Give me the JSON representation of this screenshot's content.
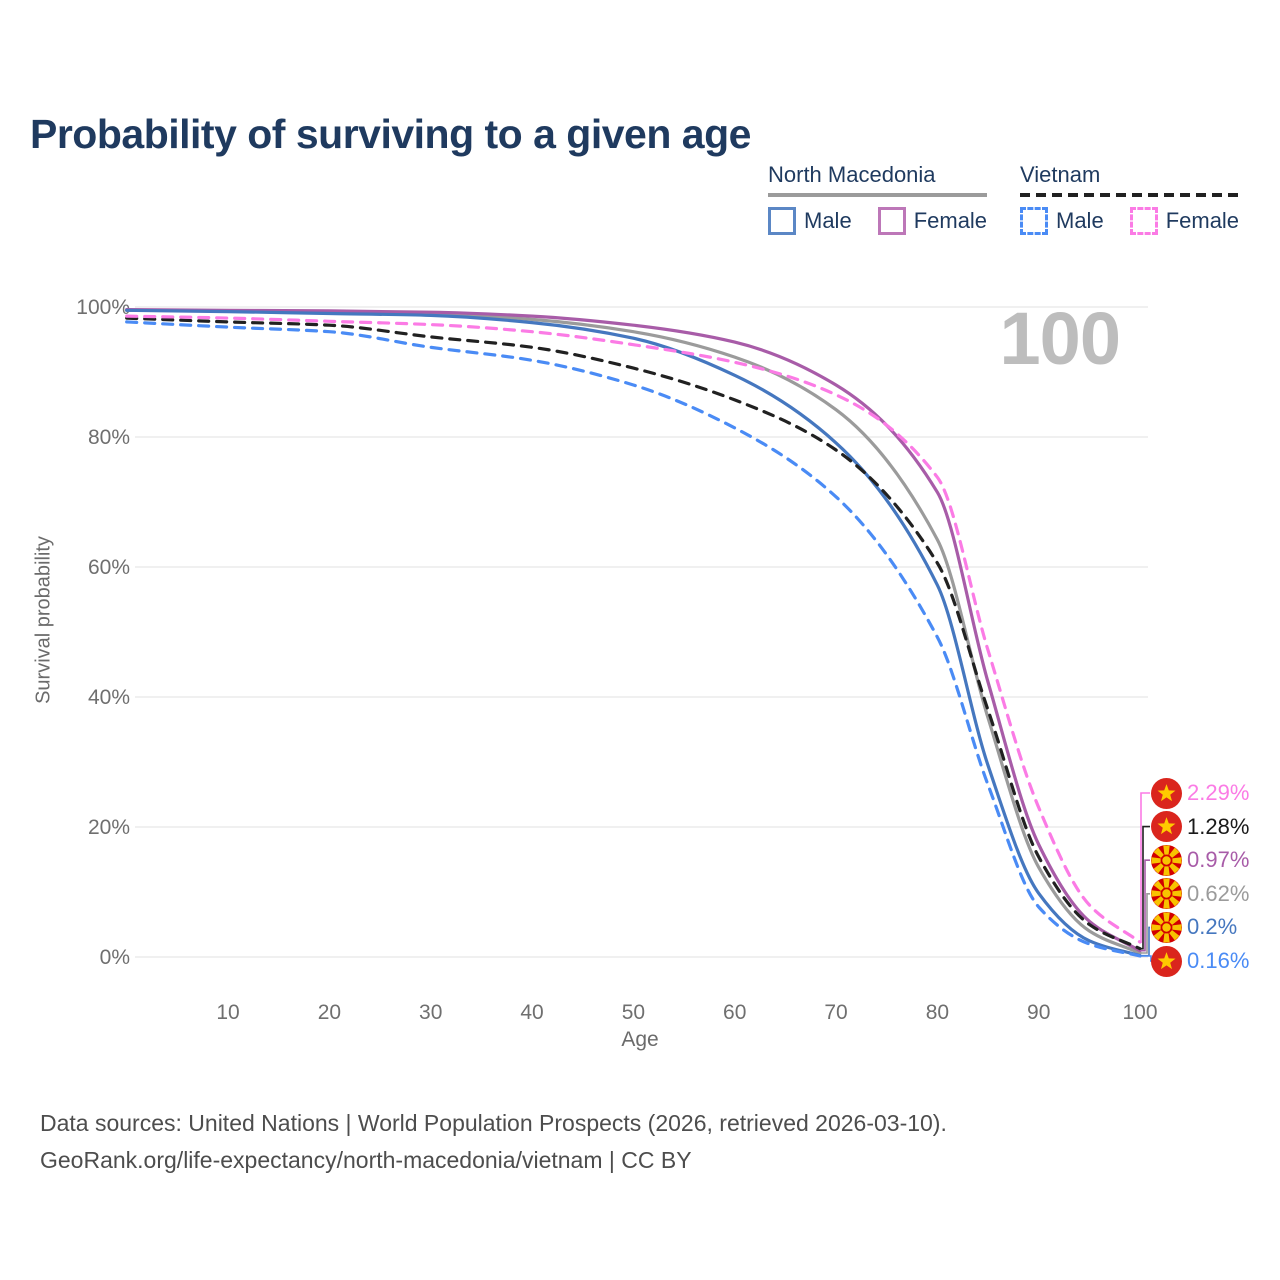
{
  "title": "Probability of surviving to a given age",
  "watermark": "100",
  "legend": {
    "groups": [
      {
        "country": "North Macedonia",
        "line": {
          "color": "#9b9b9b",
          "dashed": false
        },
        "items": [
          {
            "label": "Male",
            "color": "#5b87c5",
            "dashed": false
          },
          {
            "label": "Female",
            "color": "#bd77b8",
            "dashed": false
          }
        ]
      },
      {
        "country": "Vietnam",
        "line": {
          "color": "#212121",
          "dashed": true
        },
        "items": [
          {
            "label": "Male",
            "color": "#4a8bf5",
            "dashed": true
          },
          {
            "label": "Female",
            "color": "#fb7be5",
            "dashed": true
          }
        ]
      }
    ]
  },
  "chart_data": {
    "type": "line",
    "title": "Probability of surviving to a given age",
    "xlabel": "Age",
    "ylabel": "Survival probability",
    "xlim": [
      0,
      100
    ],
    "ylim": [
      0,
      100
    ],
    "grid": "horizontal",
    "legend_position": "top-right",
    "x_ticks": [
      10,
      20,
      30,
      40,
      50,
      60,
      70,
      80,
      90,
      100
    ],
    "y_ticks": [
      "0%",
      "20%",
      "40%",
      "60%",
      "80%",
      "100%"
    ],
    "x": [
      0,
      10,
      20,
      30,
      40,
      50,
      60,
      70,
      80,
      85,
      90,
      95,
      100
    ],
    "series": [
      {
        "name": "North Macedonia Both sexes",
        "country": "North Macedonia",
        "sex": "Both",
        "color": "#9b9b9b",
        "dashed": false,
        "flag": "mk",
        "end_label": "0.62%",
        "values": [
          99.5,
          99.4,
          99.2,
          99.0,
          98.1,
          96.2,
          92.3,
          84.2,
          64.2,
          36.8,
          13.8,
          4.0,
          0.62
        ]
      },
      {
        "name": "North Macedonia Female",
        "country": "North Macedonia",
        "sex": "Female",
        "color": "#a85ca8",
        "dashed": false,
        "flag": "mk",
        "end_label": "0.97%",
        "values": [
          99.6,
          99.5,
          99.4,
          99.2,
          98.6,
          97.2,
          94.6,
          88.0,
          71.5,
          42.3,
          17.3,
          5.5,
          0.97
        ]
      },
      {
        "name": "North Macedonia Male",
        "country": "North Macedonia",
        "sex": "Male",
        "color": "#4577bf",
        "dashed": false,
        "flag": "mk",
        "end_label": "0.2%",
        "values": [
          99.5,
          99.3,
          99.0,
          98.7,
          97.6,
          95.2,
          89.5,
          79.1,
          57.2,
          29.5,
          9.8,
          2.5,
          0.2
        ]
      },
      {
        "name": "Vietnam Both sexes",
        "country": "Vietnam",
        "sex": "Both",
        "color": "#212121",
        "dashed": true,
        "flag": "vn",
        "end_label": "1.28%",
        "values": [
          98.3,
          97.7,
          97.2,
          95.4,
          93.8,
          90.6,
          85.7,
          78.0,
          60.6,
          38.0,
          15.4,
          5.0,
          1.28
        ]
      },
      {
        "name": "Vietnam Female",
        "country": "Vietnam",
        "sex": "Female",
        "color": "#fb7be5",
        "dashed": true,
        "flag": "vn",
        "end_label": "2.29%",
        "values": [
          98.6,
          98.3,
          97.8,
          97.3,
          96.2,
          94.2,
          91.5,
          86.5,
          73.8,
          47.2,
          23.0,
          8.0,
          2.29
        ]
      },
      {
        "name": "Vietnam Male",
        "country": "Vietnam",
        "sex": "Male",
        "color": "#4a8bf5",
        "dashed": true,
        "flag": "vn",
        "end_label": "0.16%",
        "values": [
          97.7,
          96.9,
          96.2,
          93.8,
          91.8,
          88.0,
          81.4,
          70.8,
          49.2,
          26.5,
          7.7,
          2.0,
          0.16
        ]
      }
    ]
  },
  "footer": {
    "line1": "Data sources: United Nations | World Population Prospects (2026, retrieved 2026-03-10).",
    "line2": "GeoRank.org/life-expectancy/north-macedonia/vietnam | CC BY"
  }
}
